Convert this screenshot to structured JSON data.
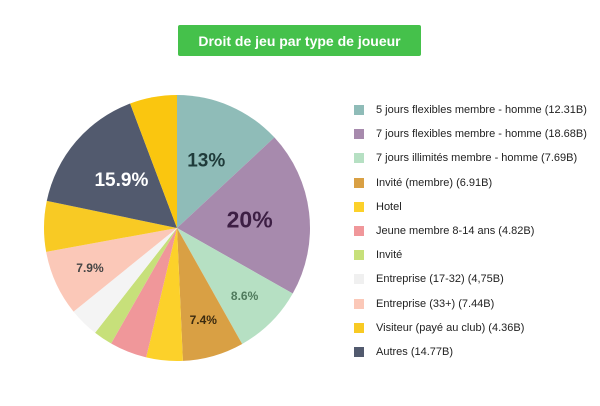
{
  "chart_data": {
    "type": "pie",
    "title": "Droit de jeu par type de joueur",
    "slices": [
      {
        "label": "5 jours flexibles membre - homme (12.31B)",
        "value": 13,
        "color": "#8fbcb8",
        "data_label": "13%",
        "label_color": "#1f3b3a"
      },
      {
        "label": "7 jours flexibles membre - homme (18.68B)",
        "value": 20,
        "color": "#a78aad",
        "data_label": "20%",
        "label_color": "#3d1f44"
      },
      {
        "label": "7 jours illimités membre - homme (7.69B)",
        "value": 8.6,
        "color": "#b6e0c3",
        "data_label": "8.6%",
        "label_color": "#4f7a5c"
      },
      {
        "label": "Invité (membre) (6.91B)",
        "value": 7.4,
        "color": "#d9a044",
        "data_label": "7.4%",
        "label_color": "#3a2a0f"
      },
      {
        "label": "Hotel",
        "value": 4.4,
        "color": "#fcd12a",
        "data_label": "",
        "label_color": "#333333"
      },
      {
        "label": "Jeune membre 8-14 ans (4.82B)",
        "value": 4.5,
        "color": "#f0979a",
        "data_label": "",
        "label_color": "#333333"
      },
      {
        "label": "Invité",
        "value": 2.3,
        "color": "#c7e07a",
        "data_label": "",
        "label_color": "#333333"
      },
      {
        "label": "Entreprise (17-32) (4,75B)",
        "value": 3.6,
        "color": "#f4f4f4",
        "data_label": "",
        "label_color": "#333333"
      },
      {
        "label": "Entreprise (33+) (7.44B)",
        "value": 7.9,
        "color": "#fbc8b8",
        "data_label": "7.9%",
        "label_color": "#444444"
      },
      {
        "label": "Visiteur (payé au club) (4.36B)",
        "value": 6.1,
        "color": "#f8ca24",
        "data_label": "",
        "label_color": "#333333"
      },
      {
        "label": "Autres (14.77B)",
        "value": 15.9,
        "color": "#525a6e",
        "data_label": "15.9%",
        "label_color": "#ffffff"
      },
      {
        "label": "",
        "value": 5.7,
        "color": "#fac60f",
        "data_label": "",
        "label_color": "#333333"
      }
    ],
    "legend_position": "right",
    "legend_entries": [
      0,
      1,
      2,
      3,
      4,
      5,
      6,
      7,
      8,
      9,
      10
    ]
  }
}
